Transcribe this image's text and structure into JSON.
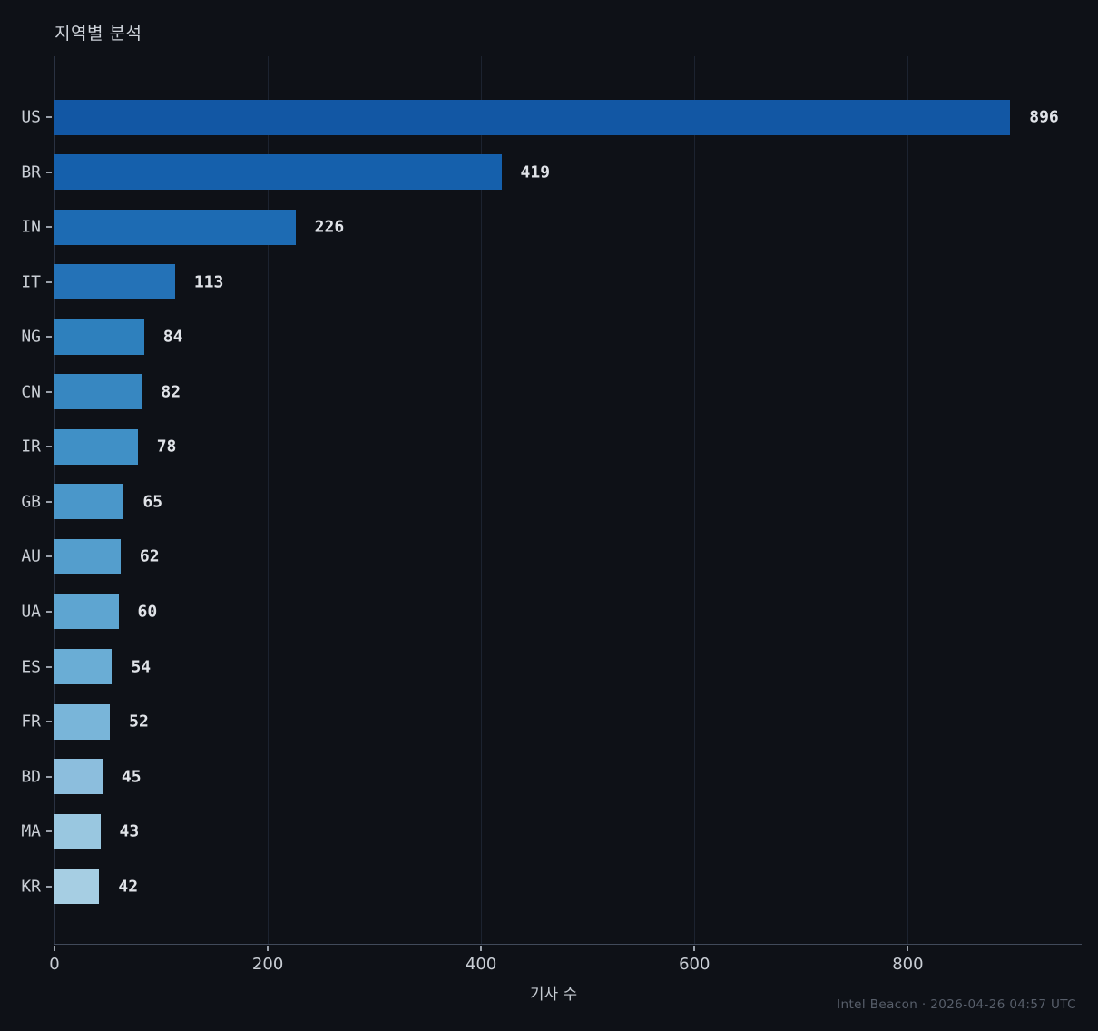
{
  "chart": {
    "title": "지역별 분석",
    "xlabel": "기사 수",
    "footer": "Intel Beacon · 2026-04-26 04:57 UTC"
  },
  "chart_data": {
    "type": "bar",
    "orientation": "horizontal",
    "title": "지역별 분석",
    "xlabel": "기사 수",
    "ylabel": "",
    "categories": [
      "US",
      "BR",
      "IN",
      "IT",
      "NG",
      "CN",
      "IR",
      "GB",
      "AU",
      "UA",
      "ES",
      "FR",
      "BD",
      "MA",
      "KR"
    ],
    "values": [
      896,
      419,
      226,
      113,
      84,
      82,
      78,
      65,
      62,
      60,
      54,
      52,
      45,
      43,
      42
    ],
    "value_labels": [
      "896",
      "419",
      "226",
      "113",
      "84",
      "82",
      "78",
      "65",
      "62",
      "60",
      "54",
      "52",
      "45",
      "43",
      "42"
    ],
    "bar_colors": [
      "#1257a4",
      "#1560ac",
      "#1d6bb3",
      "#2472b7",
      "#2e80bd",
      "#3787c1",
      "#4090c6",
      "#4a97ca",
      "#549ecd",
      "#5ea5d1",
      "#6aadd5",
      "#79b5d9",
      "#8cbedd",
      "#99c7e0",
      "#a6cee3"
    ],
    "xticks": [
      0,
      200,
      400,
      600,
      800
    ],
    "xtick_labels": [
      "0",
      "200",
      "400",
      "600",
      "800"
    ],
    "xlim": [
      0,
      963
    ],
    "grid": "vertical-only",
    "legend": false,
    "annotations": "value printed right of each bar end",
    "footer": "Intel Beacon · 2026-04-26 04:57 UTC",
    "colors": {
      "background": "#0e1117",
      "axis_line": "#414a5a",
      "gridline": "#1c2330",
      "tick": "#9aa1ab",
      "tick_label": "#c9ced5",
      "value_label": "#e0e3e8",
      "title": "#ccd1d8",
      "footer": "#585f6b"
    }
  }
}
